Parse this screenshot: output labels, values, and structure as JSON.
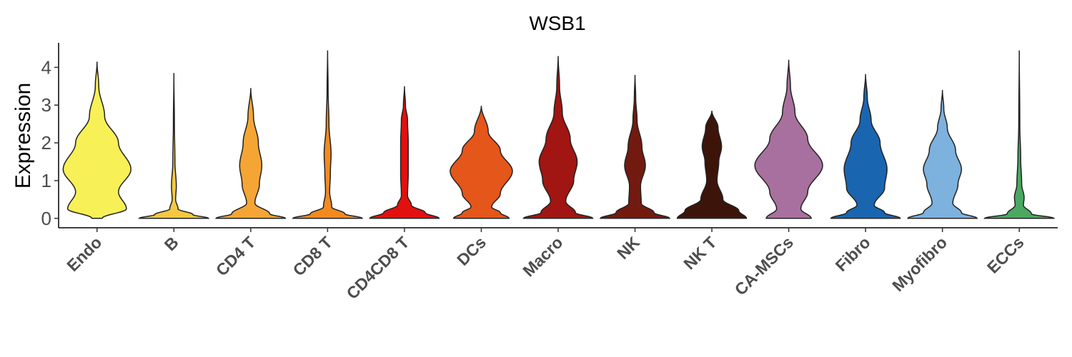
{
  "chart_data": {
    "type": "violin",
    "title": "WSB1",
    "xlabel": "",
    "ylabel": "Expression",
    "ylim": [
      -0.25,
      4.65
    ],
    "yticks": [
      0,
      1,
      2,
      3,
      4
    ],
    "grid": false,
    "legend": "none",
    "categories": [
      "Endo",
      "B",
      "CD4 T",
      "CD8 T",
      "CD4CD8 T",
      "DCs",
      "Macro",
      "NK",
      "NK T",
      "CA-MSCs",
      "Fibro",
      "Myofibro",
      "ECCs"
    ],
    "series": [
      {
        "category": "Endo",
        "color": "#f7f056",
        "max": 4.15,
        "profile": [
          [
            0,
            0.15
          ],
          [
            0.25,
            0.85
          ],
          [
            0.7,
            0.62
          ],
          [
            1.3,
            0.98
          ],
          [
            2.0,
            0.62
          ],
          [
            2.7,
            0.22
          ],
          [
            3.5,
            0.05
          ],
          [
            4.15,
            0
          ]
        ]
      },
      {
        "category": "B",
        "color": "#f5c842",
        "max": 3.85,
        "profile": [
          [
            0,
            1.0
          ],
          [
            0.1,
            0.55
          ],
          [
            0.25,
            0.12
          ],
          [
            0.5,
            0.05
          ],
          [
            0.85,
            0.07
          ],
          [
            1.5,
            0.03
          ],
          [
            2.5,
            0.015
          ],
          [
            3.85,
            0
          ]
        ]
      },
      {
        "category": "CD4 T",
        "color": "#f5a533",
        "max": 3.45,
        "profile": [
          [
            0,
            1.0
          ],
          [
            0.12,
            0.55
          ],
          [
            0.4,
            0.12
          ],
          [
            0.9,
            0.25
          ],
          [
            1.4,
            0.32
          ],
          [
            2.0,
            0.22
          ],
          [
            2.7,
            0.08
          ],
          [
            3.45,
            0
          ]
        ]
      },
      {
        "category": "CD8 T",
        "color": "#f28a20",
        "max": 4.45,
        "profile": [
          [
            0,
            1.0
          ],
          [
            0.12,
            0.5
          ],
          [
            0.3,
            0.12
          ],
          [
            0.7,
            0.06
          ],
          [
            1.2,
            0.08
          ],
          [
            1.7,
            0.1
          ],
          [
            2.5,
            0.04
          ],
          [
            3.4,
            0.015
          ],
          [
            4.45,
            0
          ]
        ]
      },
      {
        "category": "CD4CD8 T",
        "color": "#e2100f",
        "max": 3.5,
        "profile": [
          [
            0,
            1.0
          ],
          [
            0.15,
            0.6
          ],
          [
            0.35,
            0.2
          ],
          [
            0.6,
            0.09
          ],
          [
            1.2,
            0.11
          ],
          [
            2.0,
            0.11
          ],
          [
            2.6,
            0.09
          ],
          [
            3.0,
            0.03
          ],
          [
            3.5,
            0
          ]
        ]
      },
      {
        "category": "DCs",
        "color": "#e4561a",
        "max": 2.98,
        "profile": [
          [
            0,
            0.8
          ],
          [
            0.15,
            0.55
          ],
          [
            0.3,
            0.3
          ],
          [
            0.65,
            0.55
          ],
          [
            1.25,
            0.9
          ],
          [
            1.8,
            0.55
          ],
          [
            2.3,
            0.2
          ],
          [
            2.98,
            0
          ]
        ]
      },
      {
        "category": "Macro",
        "color": "#a11512",
        "max": 4.3,
        "profile": [
          [
            0,
            1.0
          ],
          [
            0.15,
            0.5
          ],
          [
            0.45,
            0.22
          ],
          [
            1.0,
            0.45
          ],
          [
            1.5,
            0.55
          ],
          [
            2.1,
            0.35
          ],
          [
            2.8,
            0.12
          ],
          [
            3.5,
            0.04
          ],
          [
            4.3,
            0
          ]
        ]
      },
      {
        "category": "NK",
        "color": "#731a10",
        "max": 3.8,
        "profile": [
          [
            0,
            1.0
          ],
          [
            0.15,
            0.55
          ],
          [
            0.4,
            0.18
          ],
          [
            0.85,
            0.16
          ],
          [
            1.4,
            0.3
          ],
          [
            1.9,
            0.2
          ],
          [
            2.6,
            0.06
          ],
          [
            3.2,
            0.02
          ],
          [
            3.8,
            0
          ]
        ]
      },
      {
        "category": "NK T",
        "color": "#3d140a",
        "max": 2.85,
        "profile": [
          [
            0,
            1.0
          ],
          [
            0.2,
            0.78
          ],
          [
            0.5,
            0.32
          ],
          [
            1.0,
            0.15
          ],
          [
            1.5,
            0.2
          ],
          [
            1.9,
            0.28
          ],
          [
            2.4,
            0.18
          ],
          [
            2.85,
            0
          ]
        ]
      },
      {
        "category": "CA-MSCs",
        "color": "#a8709e",
        "max": 4.2,
        "profile": [
          [
            0,
            0.65
          ],
          [
            0.25,
            0.35
          ],
          [
            0.7,
            0.55
          ],
          [
            1.4,
            0.98
          ],
          [
            2.1,
            0.55
          ],
          [
            2.8,
            0.18
          ],
          [
            3.5,
            0.05
          ],
          [
            4.2,
            0
          ]
        ]
      },
      {
        "category": "Fibro",
        "color": "#1a65b0",
        "max": 3.82,
        "profile": [
          [
            0,
            1.0
          ],
          [
            0.15,
            0.55
          ],
          [
            0.35,
            0.25
          ],
          [
            0.8,
            0.55
          ],
          [
            1.3,
            0.62
          ],
          [
            2.0,
            0.42
          ],
          [
            2.6,
            0.16
          ],
          [
            3.2,
            0.05
          ],
          [
            3.82,
            0
          ]
        ]
      },
      {
        "category": "Myofibro",
        "color": "#7db1de",
        "max": 3.4,
        "profile": [
          [
            0,
            1.0
          ],
          [
            0.15,
            0.55
          ],
          [
            0.4,
            0.3
          ],
          [
            0.9,
            0.45
          ],
          [
            1.3,
            0.55
          ],
          [
            1.8,
            0.38
          ],
          [
            2.4,
            0.14
          ],
          [
            2.9,
            0.04
          ],
          [
            3.4,
            0
          ]
        ]
      },
      {
        "category": "ECCs",
        "color": "#4aa861",
        "max": 4.45,
        "profile": [
          [
            0,
            1.0
          ],
          [
            0.12,
            0.35
          ],
          [
            0.35,
            0.12
          ],
          [
            0.55,
            0.14
          ],
          [
            0.9,
            0.07
          ],
          [
            1.6,
            0.04
          ],
          [
            2.5,
            0.015
          ],
          [
            4.45,
            0
          ]
        ]
      }
    ]
  }
}
